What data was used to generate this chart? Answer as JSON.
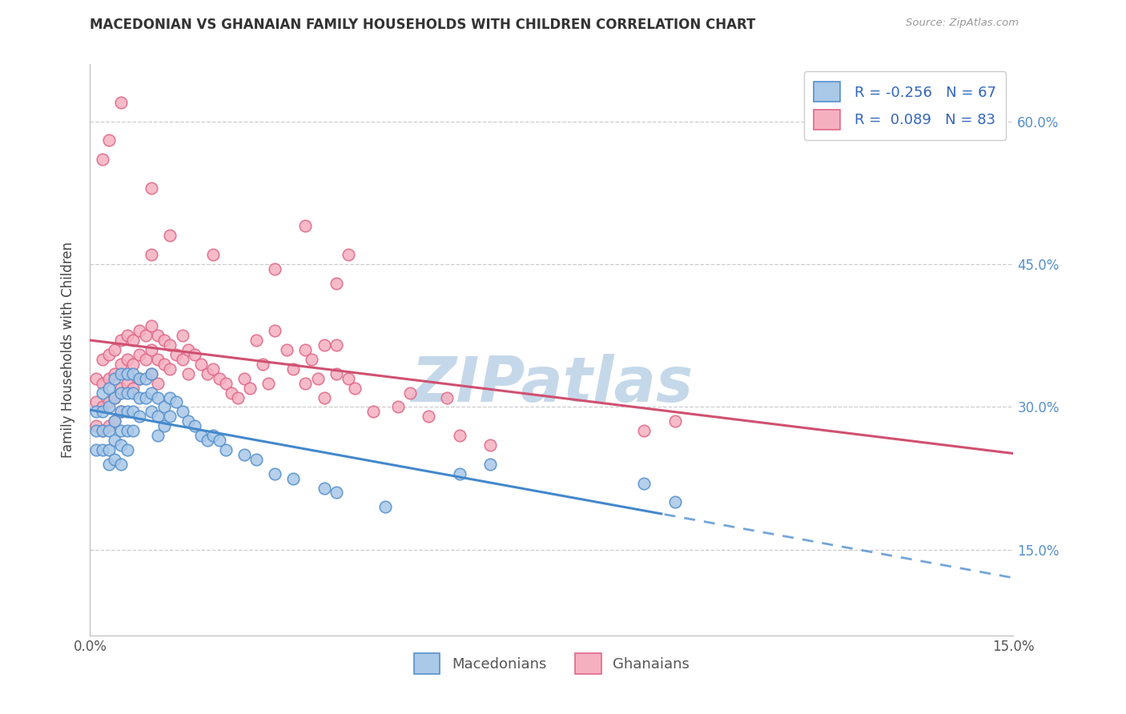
{
  "title": "MACEDONIAN VS GHANAIAN FAMILY HOUSEHOLDS WITH CHILDREN CORRELATION CHART",
  "source": "Source: ZipAtlas.com",
  "ylabel": "Family Households with Children",
  "x_min": 0.0,
  "x_max": 0.15,
  "y_min": 0.06,
  "y_max": 0.66,
  "macedonian_face_color": "#aac8e8",
  "macedonian_edge_color": "#5590cc",
  "ghanaian_face_color": "#f5b0c0",
  "ghanaian_edge_color": "#e06888",
  "macedonian_line_color": "#4488cc",
  "ghanaian_line_color": "#d05070",
  "right_axis_color": "#5590cc",
  "watermark_color": "#c5d8ea",
  "background_color": "#ffffff",
  "grid_color": "#cccccc",
  "legend_R_mac": "-0.256",
  "legend_N_mac": "67",
  "legend_R_gha": "0.089",
  "legend_N_gha": "83",
  "mac_x": [
    0.001,
    0.001,
    0.001,
    0.002,
    0.002,
    0.002,
    0.002,
    0.003,
    0.003,
    0.003,
    0.003,
    0.003,
    0.004,
    0.004,
    0.004,
    0.004,
    0.004,
    0.005,
    0.005,
    0.005,
    0.005,
    0.005,
    0.005,
    0.006,
    0.006,
    0.006,
    0.006,
    0.006,
    0.007,
    0.007,
    0.007,
    0.007,
    0.008,
    0.008,
    0.008,
    0.009,
    0.009,
    0.01,
    0.01,
    0.01,
    0.011,
    0.011,
    0.011,
    0.012,
    0.012,
    0.013,
    0.013,
    0.014,
    0.015,
    0.016,
    0.017,
    0.018,
    0.019,
    0.02,
    0.021,
    0.022,
    0.025,
    0.027,
    0.03,
    0.033,
    0.038,
    0.04,
    0.048,
    0.06,
    0.065,
    0.09,
    0.095
  ],
  "mac_y": [
    0.295,
    0.275,
    0.255,
    0.315,
    0.295,
    0.275,
    0.255,
    0.32,
    0.3,
    0.275,
    0.255,
    0.24,
    0.33,
    0.31,
    0.285,
    0.265,
    0.245,
    0.335,
    0.315,
    0.295,
    0.275,
    0.26,
    0.24,
    0.335,
    0.315,
    0.295,
    0.275,
    0.255,
    0.335,
    0.315,
    0.295,
    0.275,
    0.33,
    0.31,
    0.29,
    0.33,
    0.31,
    0.335,
    0.315,
    0.295,
    0.31,
    0.29,
    0.27,
    0.3,
    0.28,
    0.31,
    0.29,
    0.305,
    0.295,
    0.285,
    0.28,
    0.27,
    0.265,
    0.27,
    0.265,
    0.255,
    0.25,
    0.245,
    0.23,
    0.225,
    0.215,
    0.21,
    0.195,
    0.23,
    0.24,
    0.22,
    0.2
  ],
  "gha_x": [
    0.001,
    0.001,
    0.001,
    0.002,
    0.002,
    0.002,
    0.002,
    0.003,
    0.003,
    0.003,
    0.003,
    0.004,
    0.004,
    0.004,
    0.004,
    0.005,
    0.005,
    0.005,
    0.005,
    0.006,
    0.006,
    0.006,
    0.007,
    0.007,
    0.007,
    0.008,
    0.008,
    0.008,
    0.009,
    0.009,
    0.01,
    0.01,
    0.01,
    0.011,
    0.011,
    0.011,
    0.012,
    0.012,
    0.013,
    0.013,
    0.014,
    0.015,
    0.015,
    0.016,
    0.016,
    0.017,
    0.018,
    0.019,
    0.02,
    0.021,
    0.022,
    0.023,
    0.024,
    0.025,
    0.026,
    0.027,
    0.028,
    0.029,
    0.03,
    0.032,
    0.033,
    0.035,
    0.035,
    0.036,
    0.037,
    0.038,
    0.038,
    0.04,
    0.04,
    0.042,
    0.043,
    0.046,
    0.05,
    0.052,
    0.055,
    0.058,
    0.06,
    0.065,
    0.09,
    0.095,
    0.042,
    0.035,
    0.01
  ],
  "gha_y": [
    0.33,
    0.305,
    0.28,
    0.35,
    0.325,
    0.3,
    0.275,
    0.355,
    0.33,
    0.305,
    0.28,
    0.36,
    0.335,
    0.31,
    0.285,
    0.37,
    0.345,
    0.32,
    0.295,
    0.375,
    0.35,
    0.325,
    0.37,
    0.345,
    0.32,
    0.38,
    0.355,
    0.33,
    0.375,
    0.35,
    0.385,
    0.36,
    0.335,
    0.375,
    0.35,
    0.325,
    0.37,
    0.345,
    0.365,
    0.34,
    0.355,
    0.375,
    0.35,
    0.36,
    0.335,
    0.355,
    0.345,
    0.335,
    0.34,
    0.33,
    0.325,
    0.315,
    0.31,
    0.33,
    0.32,
    0.37,
    0.345,
    0.325,
    0.38,
    0.36,
    0.34,
    0.36,
    0.325,
    0.35,
    0.33,
    0.31,
    0.365,
    0.335,
    0.365,
    0.33,
    0.32,
    0.295,
    0.3,
    0.315,
    0.29,
    0.31,
    0.27,
    0.26,
    0.275,
    0.285,
    0.46,
    0.49,
    0.46
  ],
  "gha_outliers_x": [
    0.005,
    0.01,
    0.013,
    0.02,
    0.03,
    0.04,
    0.002,
    0.003
  ],
  "gha_outliers_y": [
    0.62,
    0.53,
    0.48,
    0.46,
    0.445,
    0.43,
    0.56,
    0.58
  ]
}
